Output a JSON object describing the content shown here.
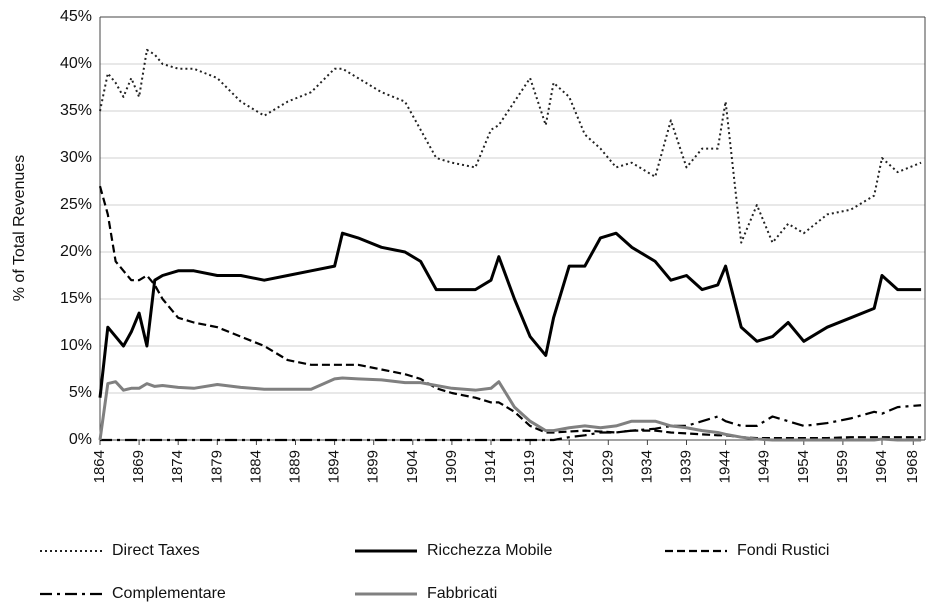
{
  "chart_data": {
    "type": "line",
    "y_label": "% of Total Revenues",
    "x": [
      1864,
      1865,
      1866,
      1867,
      1868,
      1869,
      1870,
      1871,
      1872,
      1874,
      1876,
      1879,
      1882,
      1885,
      1888,
      1891,
      1894,
      1895,
      1897,
      1900,
      1903,
      1905,
      1907,
      1909,
      1912,
      1914,
      1915,
      1917,
      1919,
      1921,
      1922,
      1924,
      1926,
      1928,
      1930,
      1932,
      1935,
      1937,
      1939,
      1941,
      1943,
      1944,
      1946,
      1948,
      1950,
      1952,
      1954,
      1957,
      1960,
      1963,
      1964,
      1966,
      1969
    ],
    "xlim": [
      1864,
      1969.5
    ],
    "xticks": [
      1864,
      1869,
      1874,
      1879,
      1884,
      1889,
      1894,
      1899,
      1904,
      1909,
      1914,
      1919,
      1924,
      1929,
      1934,
      1939,
      1944,
      1949,
      1954,
      1959,
      1964,
      1968
    ],
    "ylim": [
      0,
      45
    ],
    "yticks": [
      {
        "value": 0,
        "label": "0%"
      },
      {
        "value": 5,
        "label": "5%"
      },
      {
        "value": 10,
        "label": "10%"
      },
      {
        "value": 15,
        "label": "15%"
      },
      {
        "value": 20,
        "label": "20%"
      },
      {
        "value": 25,
        "label": "25%"
      },
      {
        "value": 30,
        "label": "30%"
      },
      {
        "value": 35,
        "label": "35%"
      },
      {
        "value": 40,
        "label": "40%"
      },
      {
        "value": 45,
        "label": "45%"
      }
    ],
    "grid": true,
    "series": [
      {
        "name": "Direct Taxes",
        "color": "#222222",
        "dash": "dotted",
        "values": [
          35,
          39,
          38,
          36.5,
          38.5,
          36.5,
          41.5,
          41,
          40,
          39.5,
          39.5,
          38.5,
          36,
          34.5,
          36,
          37,
          39.5,
          39.5,
          38.5,
          37,
          36,
          33,
          30,
          29.5,
          29,
          33,
          33.5,
          36,
          38.5,
          33.5,
          38,
          36.5,
          32.5,
          31,
          29,
          29.5,
          28,
          34,
          29,
          31,
          31,
          36,
          21,
          25,
          21,
          23,
          22,
          24,
          24.5,
          26,
          30,
          28.5,
          29.5
        ]
      },
      {
        "name": "Ricchezza Mobile",
        "color": "#000000",
        "dash": "solid",
        "values": [
          4.5,
          12,
          11,
          10,
          11.5,
          13.5,
          10,
          17,
          17.5,
          18,
          18,
          17.5,
          17.5,
          17,
          17.5,
          18,
          18.5,
          22,
          21.5,
          20.5,
          20,
          19,
          16,
          16,
          16,
          17,
          19.5,
          15,
          11,
          9,
          13,
          18.5,
          18.5,
          21.5,
          22,
          20.5,
          19,
          17,
          17.5,
          16,
          16.5,
          18.5,
          12,
          10.5,
          11,
          12.5,
          10.5,
          12,
          13,
          14,
          17.5,
          16,
          16
        ]
      },
      {
        "name": "Fondi Rustici",
        "color": "#000000",
        "dash": "dashed",
        "values": [
          27,
          24,
          19,
          18,
          17,
          17,
          17.5,
          16.5,
          15,
          13,
          12.5,
          12,
          11,
          10,
          8.5,
          8,
          8,
          8,
          8,
          7.5,
          7,
          6.5,
          5.5,
          5,
          4.5,
          4,
          4,
          3,
          1.5,
          0.8,
          0.8,
          0.9,
          1,
          0.9,
          0.8,
          1,
          1,
          0.8,
          0.7,
          0.6,
          0.5,
          0.5,
          0.3,
          0.2,
          0.2,
          0.2,
          0.2,
          0.2,
          0.3,
          0.3,
          0.3,
          0.3,
          0.3
        ]
      },
      {
        "name": "Complementare",
        "color": "#000000",
        "dash": "dashdot",
        "values": [
          0,
          0,
          0,
          0,
          0,
          0,
          0,
          0,
          0,
          0,
          0,
          0,
          0,
          0,
          0,
          0,
          0,
          0,
          0,
          0,
          0,
          0,
          0,
          0,
          0,
          0,
          0,
          0,
          0,
          0,
          0,
          0.3,
          0.5,
          0.8,
          0.8,
          1,
          1.2,
          1.5,
          1.5,
          2,
          2.5,
          2,
          1.5,
          1.5,
          2.5,
          2,
          1.5,
          1.8,
          2.3,
          3,
          2.8,
          3.5,
          3.7
        ]
      },
      {
        "name": "Fabbricati",
        "color": "#808080",
        "dash": "solid",
        "values": [
          0,
          6,
          6.2,
          5.3,
          5.5,
          5.5,
          6,
          5.7,
          5.8,
          5.6,
          5.5,
          5.9,
          5.6,
          5.4,
          5.4,
          5.4,
          6.5,
          6.6,
          6.5,
          6.4,
          6.1,
          6.1,
          5.8,
          5.5,
          5.3,
          5.5,
          6.2,
          3.5,
          2,
          1,
          1,
          1.3,
          1.5,
          1.3,
          1.5,
          2,
          2,
          1.5,
          1.3,
          1,
          0.8,
          0.6,
          0.3,
          0.1,
          0,
          0,
          0,
          0,
          0,
          0,
          0.1,
          0,
          0
        ]
      }
    ]
  }
}
